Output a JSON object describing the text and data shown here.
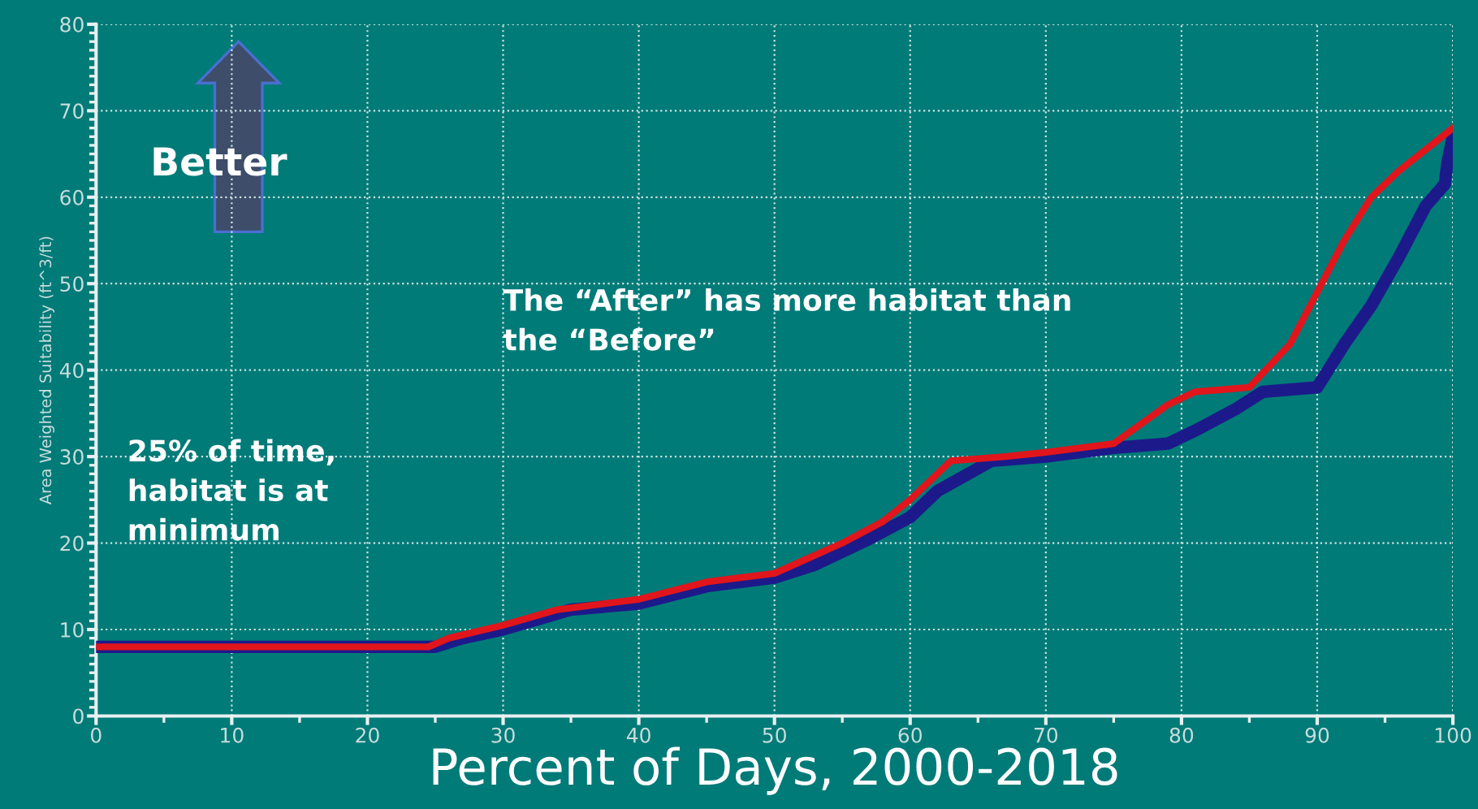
{
  "chart_data": {
    "type": "line",
    "xlabel": "Percent of Days, 2000-2018",
    "ylabel": "Area Weighted Suitability (ft^3/ft)",
    "annotations": [
      "Better",
      "25% of time,\nhabitat is at\nminimum",
      "The “After” has more habitat than\nthe “Before”"
    ],
    "series": [
      {
        "color": "#1c1a8a",
        "x": [
          0,
          25,
          27,
          30,
          35,
          40,
          45,
          50,
          53,
          57,
          60,
          62,
          66,
          70,
          75,
          79,
          81,
          84,
          86,
          90,
          92,
          94,
          96,
          98,
          99.4,
          99.6,
          100
        ],
        "values": [
          8,
          8,
          9,
          10,
          12.3,
          13,
          15,
          16,
          17.5,
          20.5,
          23,
          26,
          29.5,
          30,
          31,
          31.5,
          33,
          35.5,
          37.5,
          38,
          43,
          47.5,
          53,
          59,
          61.5,
          64,
          67
        ]
      },
      {
        "color": "#e0161c",
        "x": [
          0,
          24.5,
          26,
          30,
          34,
          40,
          45,
          50,
          55,
          58,
          60,
          63,
          67,
          70,
          75,
          79,
          81,
          85,
          88,
          90,
          92,
          94,
          96,
          100
        ],
        "values": [
          8,
          8,
          9,
          10.5,
          12.3,
          13.5,
          15.5,
          16.5,
          20,
          22.5,
          25,
          29.5,
          30,
          30.5,
          31.5,
          36,
          37.5,
          38,
          43,
          49,
          55,
          60,
          63,
          68
        ]
      }
    ],
    "xlim": [
      0,
      100
    ],
    "ylim": [
      0,
      80
    ],
    "xticks": [
      0,
      10,
      20,
      30,
      40,
      50,
      60,
      70,
      80,
      90,
      100
    ],
    "yticks": [
      0,
      10,
      20,
      30,
      40,
      50,
      60,
      70,
      80
    ],
    "grid": true,
    "marker": "none",
    "line_style": "solid"
  }
}
